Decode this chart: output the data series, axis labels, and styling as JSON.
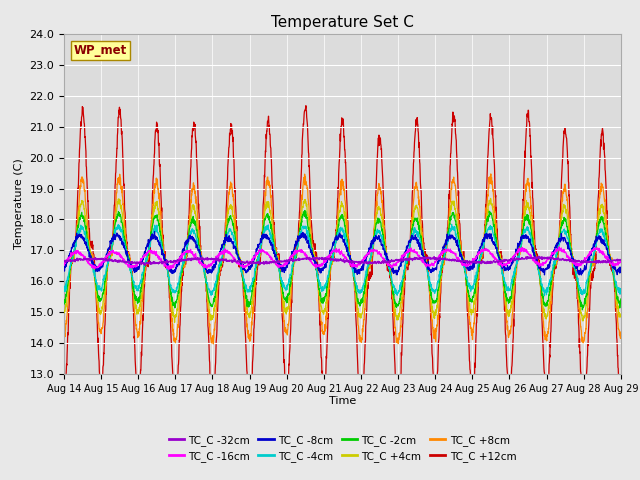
{
  "title": "Temperature Set C",
  "xlabel": "Time",
  "ylabel": "Temperature (C)",
  "ylim": [
    13.0,
    24.0
  ],
  "yticks": [
    13.0,
    14.0,
    15.0,
    16.0,
    17.0,
    18.0,
    19.0,
    20.0,
    21.0,
    22.0,
    23.0,
    24.0
  ],
  "xtick_labels": [
    "Aug 14",
    "Aug 15",
    "Aug 16",
    "Aug 17",
    "Aug 18",
    "Aug 19",
    "Aug 20",
    "Aug 21",
    "Aug 22",
    "Aug 23",
    "Aug 24",
    "Aug 25",
    "Aug 26",
    "Aug 27",
    "Aug 28",
    "Aug 29"
  ],
  "n_days": 15,
  "samples_per_day": 144,
  "base_temp": 16.7,
  "legend_entries": [
    {
      "label": "TC_C -32cm",
      "color": "#9900cc"
    },
    {
      "label": "TC_C -16cm",
      "color": "#ff00ff"
    },
    {
      "label": "TC_C -8cm",
      "color": "#0000cc"
    },
    {
      "label": "TC_C -4cm",
      "color": "#00cccc"
    },
    {
      "label": "TC_C -2cm",
      "color": "#00cc00"
    },
    {
      "label": "TC_C +4cm",
      "color": "#cccc00"
    },
    {
      "label": "TC_C +8cm",
      "color": "#ff8800"
    },
    {
      "label": "TC_C +12cm",
      "color": "#cc0000"
    }
  ],
  "wp_met_box_color": "#ffff99",
  "wp_met_text_color": "#8B0000",
  "background_color": "#e8e8e8",
  "plot_bg_color": "#dcdcdc",
  "figsize": [
    6.4,
    4.8
  ],
  "dpi": 100
}
